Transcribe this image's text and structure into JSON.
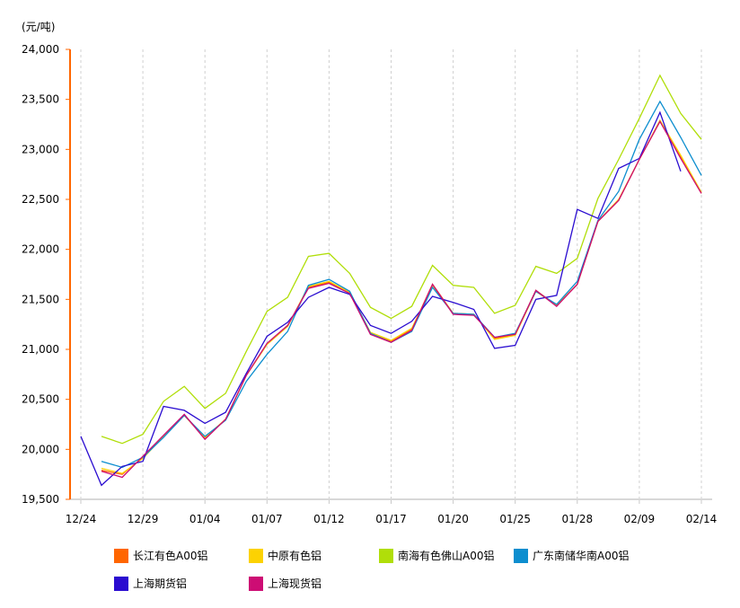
{
  "chart_data": {
    "type": "line",
    "ylabel": "(元/吨)",
    "ylim": [
      19500,
      24000
    ],
    "yticks": [
      "19,500",
      "20,000",
      "20,500",
      "21,000",
      "21,500",
      "22,000",
      "22,500",
      "23,000",
      "23,500",
      "24,000"
    ],
    "ytick_values": [
      19500,
      20000,
      20500,
      21000,
      21500,
      22000,
      22500,
      23000,
      23500,
      24000
    ],
    "xtick_labels": [
      "12/24",
      "12/29",
      "01/04",
      "01/07",
      "01/12",
      "01/17",
      "01/20",
      "01/25",
      "01/28",
      "02/09",
      "02/14"
    ],
    "xtick_index": [
      0,
      3,
      6,
      9,
      12,
      15,
      18,
      21,
      24,
      27,
      30
    ],
    "point_count": 31,
    "grid": "vertical dashed",
    "legend_position": "bottom",
    "axis_color": "#ff6600",
    "series": [
      {
        "name": "长江有色A00铝",
        "color": "#ff6600",
        "values": [
          null,
          19790,
          19750,
          19920,
          20130,
          20340,
          20110,
          20300,
          20740,
          21050,
          21230,
          21620,
          21670,
          21560,
          21160,
          21080,
          21200,
          21650,
          21360,
          21350,
          21110,
          21150,
          21590,
          21440,
          21650,
          22280,
          22490,
          22900,
          23280,
          22920,
          22560
        ]
      },
      {
        "name": "中原有色铝",
        "color": "#fcd202",
        "values": [
          null,
          19810,
          19760,
          19910,
          20130,
          20340,
          20120,
          20300,
          20740,
          21050,
          21230,
          21630,
          21680,
          21570,
          21170,
          21090,
          21210,
          21640,
          21360,
          21350,
          21100,
          21140,
          21580,
          21440,
          21650,
          22280,
          22500,
          22900,
          23290,
          22940,
          22570
        ]
      },
      {
        "name": "南海有色佛山A00铝",
        "color": "#b0de09",
        "values": [
          null,
          20130,
          20060,
          20150,
          20480,
          20630,
          20410,
          20560,
          20980,
          21380,
          21520,
          21930,
          21960,
          21760,
          21420,
          21310,
          21430,
          21840,
          21640,
          21620,
          21360,
          21440,
          21830,
          21760,
          21910,
          22510,
          22900,
          23310,
          23740,
          23360,
          23100
        ]
      },
      {
        "name": "广东南储华南A00铝",
        "color": "#0d8ecf",
        "values": [
          null,
          19880,
          19820,
          19920,
          20120,
          20340,
          20130,
          20290,
          20680,
          20950,
          21180,
          21640,
          21700,
          21580,
          21160,
          21070,
          21180,
          21620,
          21360,
          21350,
          21120,
          21160,
          21580,
          21450,
          21680,
          22290,
          22580,
          23100,
          23480,
          23120,
          22740
        ]
      },
      {
        "name": "上海期货铝",
        "color": "#2a0cd0",
        "values": [
          20130,
          19640,
          19830,
          19880,
          20430,
          20390,
          20260,
          20370,
          20760,
          21130,
          21270,
          21520,
          21620,
          21550,
          21240,
          21160,
          21280,
          21530,
          21470,
          21400,
          21010,
          21040,
          21500,
          21540,
          22400,
          22310,
          22810,
          22910,
          23370,
          22780,
          null
        ]
      },
      {
        "name": "上海现货铝",
        "color": "#cd0d74",
        "values": [
          null,
          19780,
          19720,
          19930,
          20140,
          20350,
          20100,
          20300,
          20740,
          21060,
          21240,
          21610,
          21660,
          21560,
          21150,
          21070,
          21190,
          21650,
          21350,
          21340,
          21120,
          21150,
          21590,
          21430,
          21650,
          22280,
          22490,
          22900,
          23280,
          22910,
          22560
        ]
      }
    ]
  }
}
